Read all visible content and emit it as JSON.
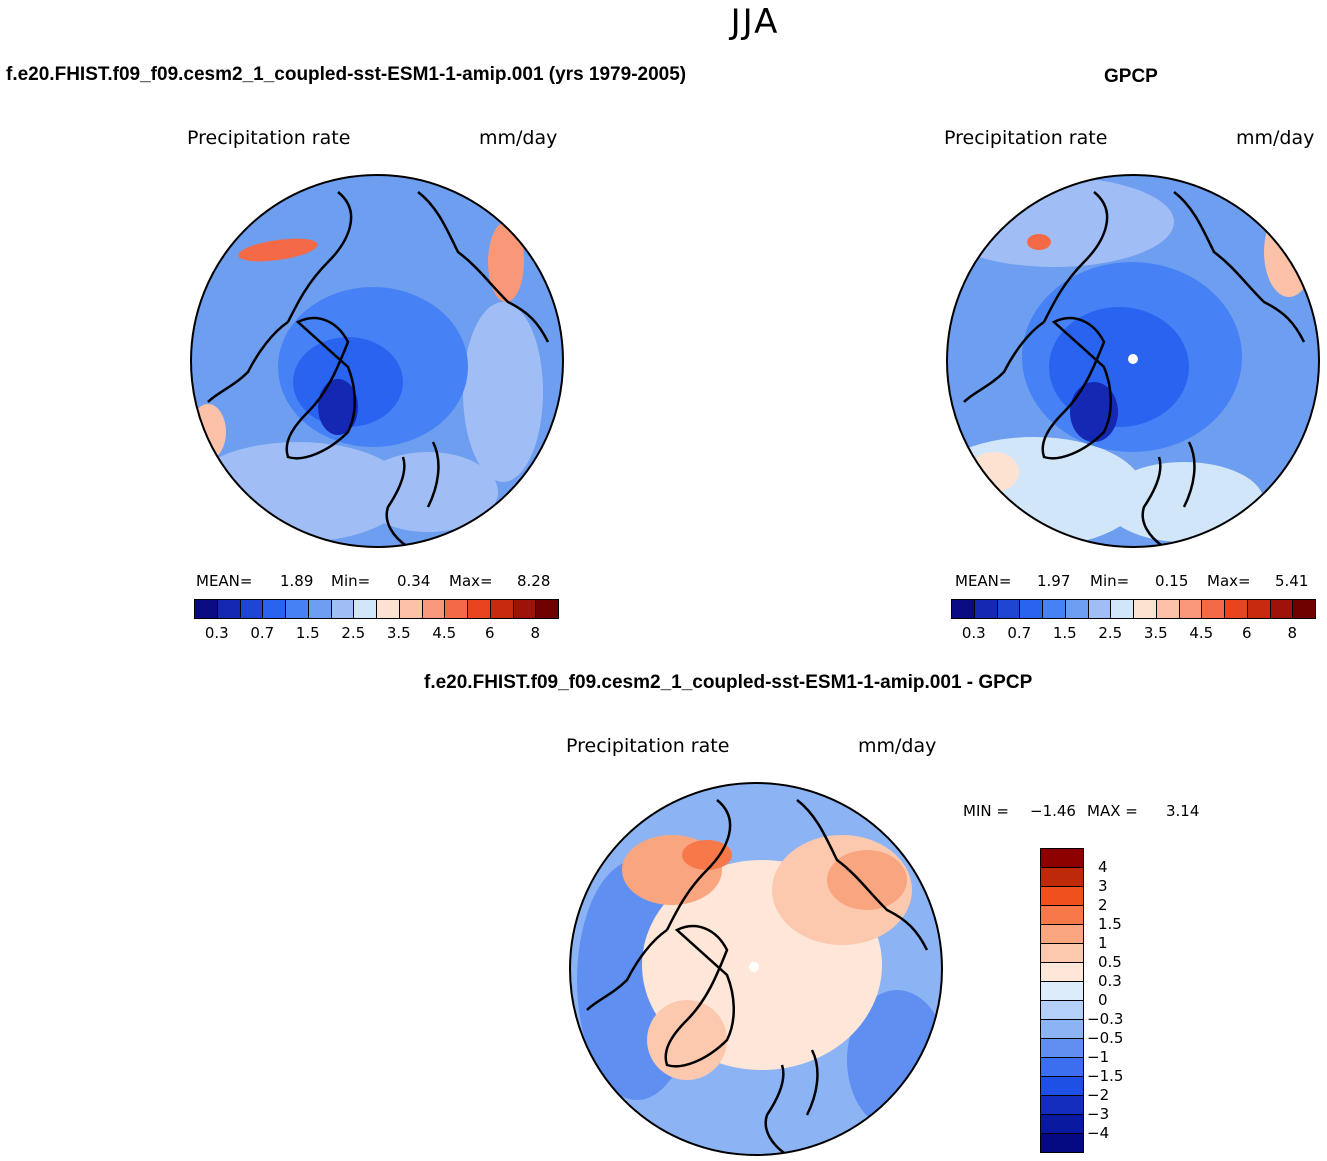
{
  "season": "JJA",
  "panels": [
    {
      "title": "f.e20.FHIST.f09_f09.cesm2_1_coupled-sst-ESM1-1-amip.001 (yrs 1979-2005)",
      "variable": "Precipitation rate",
      "units": "mm/day",
      "stats": {
        "mean_label": "MEAN=",
        "mean": "1.89",
        "min_label": "Min=",
        "min": "0.34",
        "max_label": "Max=",
        "max": "8.28"
      }
    },
    {
      "title": "GPCP",
      "variable": "Precipitation rate",
      "units": "mm/day",
      "stats": {
        "mean_label": "MEAN=",
        "mean": "1.97",
        "min_label": "Min=",
        "min": "0.15",
        "max_label": "Max=",
        "max": "5.41"
      }
    },
    {
      "title": "f.e20.FHIST.f09_f09.cesm2_1_coupled-sst-ESM1-1-amip.001 - GPCP",
      "variable": "Precipitation rate",
      "units": "mm/day",
      "stats": {
        "min_label": "MIN =",
        "min": "−1.46",
        "max_label": "MAX =",
        "max": "3.14"
      }
    }
  ],
  "colorbar_abs": {
    "colors": [
      "#0a0a82",
      "#1428b4",
      "#1e46d2",
      "#2864f0",
      "#4682f5",
      "#6e9ef0",
      "#a0bef5",
      "#d2e6fa",
      "#fde2d2",
      "#fcc2a8",
      "#f99878",
      "#f56a46",
      "#e84420",
      "#c82a0e",
      "#9e120a",
      "#6e0000"
    ],
    "tick_labels": [
      "0.3",
      "0.7",
      "1.5",
      "2.5",
      "3.5",
      "4.5",
      "6",
      "8"
    ]
  },
  "colorbar_diff": {
    "colors_top_to_bottom": [
      "#8c0000",
      "#bd2a0a",
      "#f0501e",
      "#f77848",
      "#f9a680",
      "#fcc8ae",
      "#fee6d8",
      "#dcecfa",
      "#b4d0fa",
      "#8cb4f5",
      "#5f8ff0",
      "#3c6ef0",
      "#1e50e6",
      "#142dbe",
      "#0a1aa0",
      "#050a82"
    ],
    "tick_labels": [
      "4",
      "3",
      "2",
      "1.5",
      "1",
      "0.5",
      "0.3",
      "0",
      "−0.3",
      "−0.5",
      "−1",
      "−1.5",
      "−2",
      "−3",
      "−4"
    ]
  },
  "chart_data": [
    {
      "type": "heatmap",
      "projection": "north-polar-stereographic",
      "title": "f.e20.FHIST.f09_f09.cesm2_1_coupled-sst-ESM1-1-amip.001 (yrs 1979-2005)",
      "variable": "Precipitation rate",
      "units": "mm/day",
      "mean": 1.89,
      "min": 0.34,
      "max": 8.28,
      "contour_levels": [
        0.2,
        0.3,
        0.5,
        0.7,
        1,
        1.5,
        2,
        2.5,
        3,
        3.5,
        4,
        4.5,
        5,
        6,
        7,
        8
      ]
    },
    {
      "type": "heatmap",
      "projection": "north-polar-stereographic",
      "title": "GPCP",
      "variable": "Precipitation rate",
      "units": "mm/day",
      "mean": 1.97,
      "min": 0.15,
      "max": 5.41,
      "contour_levels": [
        0.2,
        0.3,
        0.5,
        0.7,
        1,
        1.5,
        2,
        2.5,
        3,
        3.5,
        4,
        4.5,
        5,
        6,
        7,
        8
      ]
    },
    {
      "type": "heatmap",
      "projection": "north-polar-stereographic",
      "title": "f.e20.FHIST.f09_f09.cesm2_1_coupled-sst-ESM1-1-amip.001 - GPCP",
      "variable": "Precipitation rate",
      "units": "mm/day",
      "min": -1.46,
      "max": 3.14,
      "contour_levels": [
        -4,
        -3,
        -2,
        -1.5,
        -1,
        -0.5,
        -0.3,
        0,
        0.3,
        0.5,
        1,
        1.5,
        2,
        3,
        4
      ]
    }
  ]
}
